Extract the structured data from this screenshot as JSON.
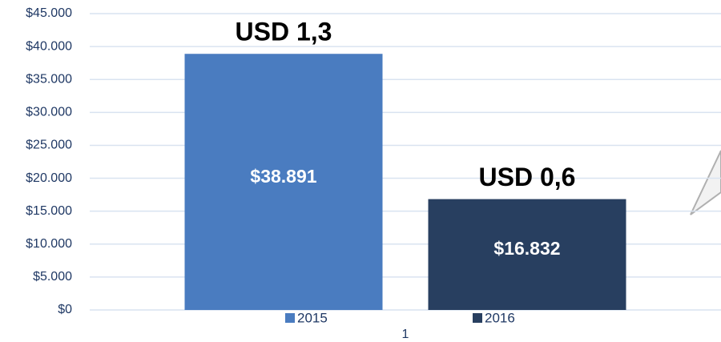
{
  "chart_data": {
    "type": "bar",
    "categories": [
      "1"
    ],
    "series": [
      {
        "name": "2015",
        "color": "#4a7cc0",
        "values": [
          38891
        ],
        "value_labels": [
          "$38.891"
        ]
      },
      {
        "name": "2016",
        "color": "#283f60",
        "values": [
          16832
        ],
        "value_labels": [
          "$16.832"
        ]
      }
    ],
    "annotations": [
      "USD 1,3",
      "USD 0,6"
    ],
    "ylim": [
      0,
      45000
    ],
    "yticks": [
      {
        "value": 0,
        "label": "$0"
      },
      {
        "value": 5000,
        "label": "$5.000"
      },
      {
        "value": 10000,
        "label": "$10.000"
      },
      {
        "value": 15000,
        "label": "$15.000"
      },
      {
        "value": 20000,
        "label": "$20.000"
      },
      {
        "value": 25000,
        "label": "$25.000"
      },
      {
        "value": 30000,
        "label": "$30.000"
      },
      {
        "value": 35000,
        "label": "$35.000"
      },
      {
        "value": 40000,
        "label": "$40.000"
      },
      {
        "value": 45000,
        "label": "$45.000"
      }
    ],
    "grid": true
  }
}
